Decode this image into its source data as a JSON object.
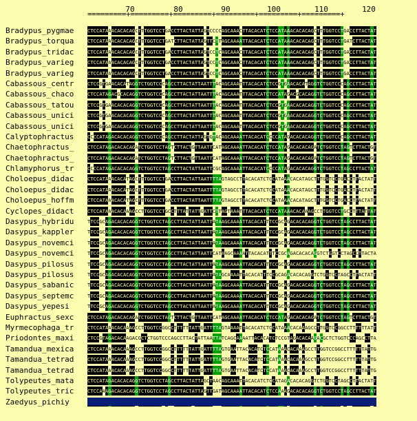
{
  "ruler": {
    "ticks": [
      "70",
      "80",
      "90",
      "100",
      "110",
      "120"
    ],
    "line": "=========+=========+=========+=========+=========+=========+"
  },
  "species": [
    {
      "name": "Bradypus_pygmae",
      "seq": "CTCCATAAACACACAGCTTTGGTCCTGACCTTACTATTAGTCCCCAGCAAACTTACACAT"
    },
    {
      "name": "Bradypus_torqua",
      "seq": "CTCCATAAACACACAGCTTTGGTCCTGATCTTACTATTAGTTCTTAGCAAAATTACACAT"
    },
    {
      "name": "Bradypus_tridac",
      "seq": "CTCCATAAACACACAGCTTTGGTCCTGACCTTACTATTAGTCCTCAGCAAACTTACACAT"
    },
    {
      "name": "Bradypus_varieg",
      "seq": "CTCCATAAACACACAGCTTTGGTCCTGACCTTACTATTAGTCCTCAGCAAACTTACACAT"
    },
    {
      "name": "Bradypus_varieg",
      "seq": "CTCCATAAACACACAGCTTTGGTCCTGACCTTACTATTAGTCCTCAGCAAACTTACACAT"
    },
    {
      "name": "Cabassous_centr",
      "seq": "CTCCGTGAACACATAGGTCTGGTCCCAGCCTTACTATTAATTTACAGCAAATTTACACAT"
    },
    {
      "name": "Cabassous_chaco",
      "seq": "CTCCATAGACGCACAGGTCTGGTCCCAGCCTTACTATTAATTTACAGCAAATTTACACAT"
    },
    {
      "name": "Cabassous_tatou",
      "seq": "CTCCGTGAACACACAGGTCTGGTCCCAGCCTTACTATTAATTTACAGCAAATTTACACAT"
    },
    {
      "name": "Cabassous_unici",
      "seq": "CTCCGTGAACACACAGGTCTGGTCCCAGCCTTACTATTAATTTACAGCAAATTTACACAT"
    },
    {
      "name": "Cabassous_unici",
      "seq": "CTCCGTGAACACACAGGTCTGGTCCCAGCCTTACTATTAATTTACAGCAAATTTACACAT"
    },
    {
      "name": "Calyptophractus",
      "seq": "CCCCATAGACACACAGGTCTGGTCCCAGCCTTACTATTAGTGTACAGCAAAATTACACAT"
    },
    {
      "name": "Chaetophractus_",
      "seq": "CTCCATAGACACACAGATCTGGTCCTAGTCTTACTGTTAATTCATAGCAAAATTACACAT"
    },
    {
      "name": "Chaetophractus_",
      "seq": "CTCCATAGACACACAGATCTGGTCCTAGTCTTACTGTTAATTCATAGCAAAATTACACAT"
    },
    {
      "name": "Chlamyphorus_tr",
      "seq": "CCCCATAGACACACAGGTCTGGTCCTAGCCTTACTATTAATTCGCAGCAAAATTACACAT"
    },
    {
      "name": "Choloepus_didac",
      "seq": "CTCCATAAACACATAGCTTTGGTCCTGACCTTACTATTAATTTTAGTAGCCTTACACAT"
    },
    {
      "name": "Choloepus_didac",
      "seq": "CTCCATAAACACATAGCTTTGGTCCTGACCTTACTATTAATTTTAGTAGCCTTACACAT"
    },
    {
      "name": "Choloepus_hoffm",
      "seq": "CTCCATAAACACATAGCTTTGGTCCTGACCTTACTATTAATTTTAGTAGCCTTACACAT"
    },
    {
      "name": "Cyclopes_didact",
      "seq": "CTCCATAAACACAAAGCCTTGGTCCTGCCTTTATTATTGATTCTTAGTAAATTTACACAT"
    },
    {
      "name": "Dasypus_hybridu",
      "seq": "TTCCGCAGACACACAGGTCTGGTCCTAGCCTTACTATTAATTATAAGCAAAATTACACAT"
    },
    {
      "name": "Dasypus_kappler",
      "seq": "TTCCGCAGACACACAGGTCTGGTCCTAGCCTTACTATTAATTATAAGCAAAATTACACAT"
    },
    {
      "name": "Dasypus_novemci",
      "seq": "TTCCGCAGACACACAGGTCTGGTCCTAGCCTTACTATTAATTATAAGCAAAATTACACAT"
    },
    {
      "name": "Dasypus_novemci",
      "seq": "TTCCGCAGACACACAGGTCTGGTCCTAGCCTTACTATTAATTCATAAGCAAAATTACACAT"
    },
    {
      "name": "Dasypus_pilosus",
      "seq": "TTCCGCAGACACACAGGTCTGGTCCTAGCCTTACTATTAATTATAAGCAAAATTACACAT"
    },
    {
      "name": "Dasypus_pilosus",
      "seq": "TTCCGCAGACACACAGGTCTGGTCCTAGCCTTACTATTAATTATAGCAAAATTACACAT"
    },
    {
      "name": "Dasypus_sabanic",
      "seq": "TTCCGCAGACACACAGGTCTGGTCCTAGCCTTACTATTAATTATAAGCAAAATTACACAT"
    },
    {
      "name": "Dasypus_septemc",
      "seq": "TTCCGCAGACACACAGGTCTGGTCCTAGCCTTACTATTAATTATAAGCAAAATTACACAT"
    },
    {
      "name": "Dasypus_yepesi",
      "seq": "TTCCGCAGACACACAGGTCTGGTCCTAGCCTTACTATTAATTATAAGCAAAATTACACAT"
    },
    {
      "name": "Euphractus_sexc",
      "seq": "CTCCATAGACACACAGATCTGGTCCTAGTCTTACTGTTAATTCATAGCAAAATTACACAT"
    },
    {
      "name": "Myrmecophaga_tr",
      "seq": "CTCCATAAACACAAAGCCTTGGTCCGGCCTTTTTTATTGATTTTAGTAAAATTACACAT"
    },
    {
      "name": "Priodontes_maxi",
      "seq": "CTCCGTAGACACAAGACGCTCTGGTCCCAGCCTTACTATTAATTATCAGCAAAATTACACAT"
    },
    {
      "name": "Tamandua_mexica",
      "seq": "CTCCATAAACACAAAGCCTTGGTCCGGCCTTTTTTATTGATTTTAGTGAATTACACAT"
    },
    {
      "name": "Tamandua_tetrad",
      "seq": "CTCCATAAACACAAAGCCTTGGTCCGGCCTTTTTTATTGATTTTAGTGAATTACACAT"
    },
    {
      "name": "Tamandua_tetrad",
      "seq": "CTCCATAAACACAAAGCCTTGGTCCGGCCTTTTTTATTGATTTTAGTGAATTACACAT"
    },
    {
      "name": "Tolypeutes_mata",
      "seq": "CTCCATAGACACACAGGTCTGGTCCTAGCCTTACTATTAGCTAACAGCAAATTACACAT"
    },
    {
      "name": "Tolypeutes_tric",
      "seq": "CTCCAAAGACACACAGGTCTGGTCCTAGCCTTACTATTAGTTGATAGCAAAATTACACAT"
    },
    {
      "name": "Zaedyus_pichiy",
      "seq": "CTCCATAGACACACAGATCTGGTCCCAATCTTACTGTTAATTCATAGCAAAATTACACAT"
    }
  ],
  "colors": {
    "background": "#fdfdb0",
    "conserved_bg": "#000000",
    "variable_bg": "#00a000",
    "footer_bar": "#0a1e78"
  }
}
